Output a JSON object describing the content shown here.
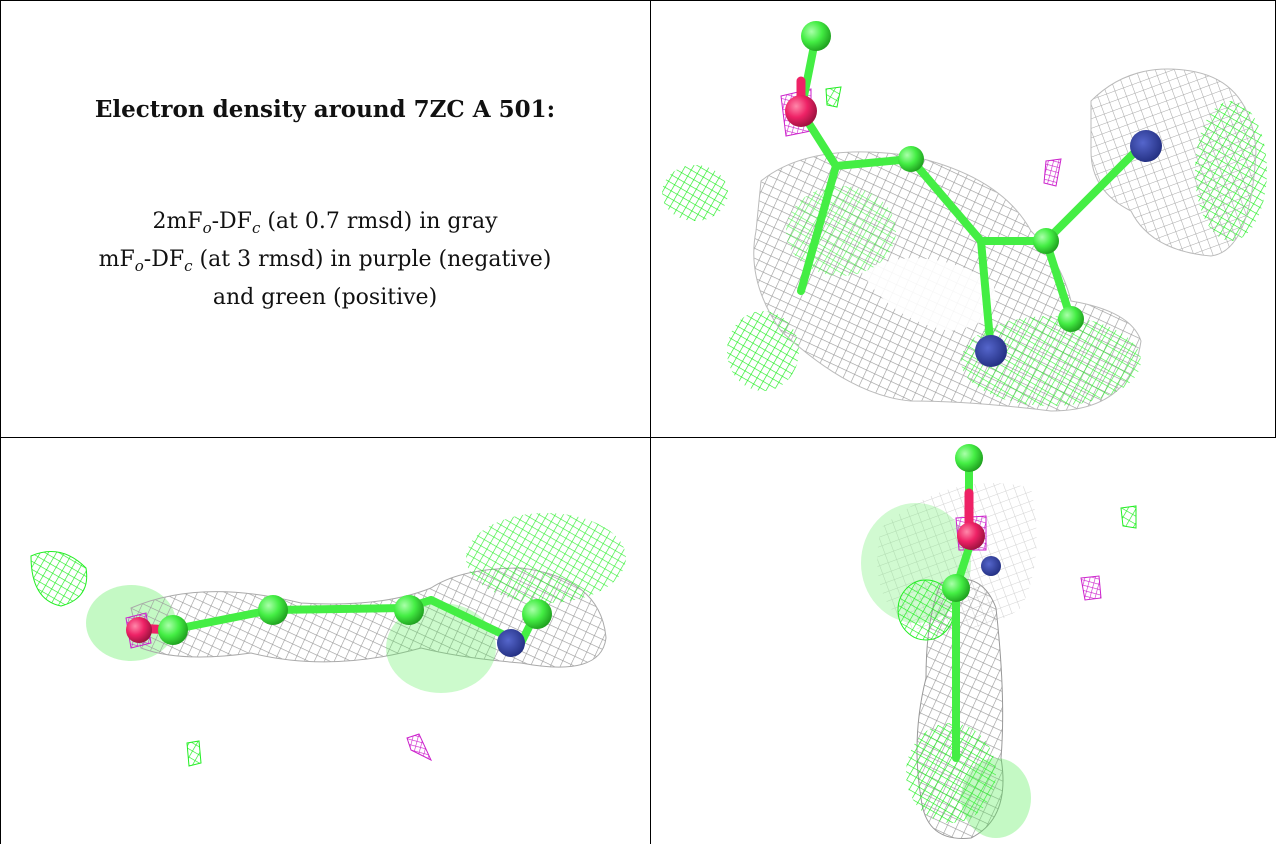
{
  "caption": {
    "title": "Electron density around 7ZC A 501:",
    "line1": {
      "a": "2mF",
      "b": "o",
      "c": "-DF",
      "d": "c",
      "e": " (at 0.7 rmsd) in gray"
    },
    "line2": {
      "a": "mF",
      "b": "o",
      "c": "-DF",
      "d": "c",
      "e": " (at 3 rmsd) in purple (negative)"
    },
    "line3": "and green (positive)"
  },
  "colors": {
    "mesh_gray": "#b0b0b0",
    "mesh_green": "#33ff33",
    "mesh_purple": "#dd22dd",
    "carbon": "#44ee44",
    "oxygen": "#ee2266",
    "nitrogen": "#2a3a9a"
  },
  "panels": [
    {
      "id": "view-top-right",
      "description_name": "density-view-1"
    },
    {
      "id": "view-bottom-left",
      "description_name": "density-view-2"
    },
    {
      "id": "view-bottom-right",
      "description_name": "density-view-3"
    }
  ]
}
